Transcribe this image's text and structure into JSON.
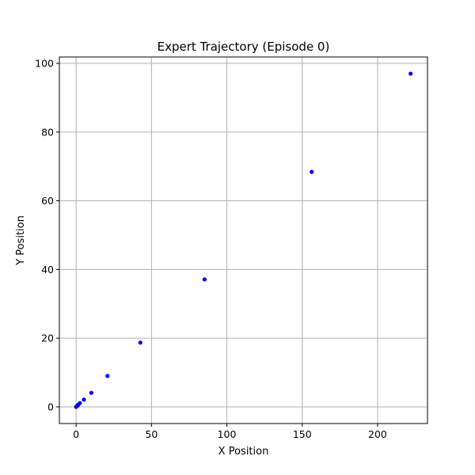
{
  "chart_data": {
    "type": "scatter",
    "title": "Expert Trajectory (Episode 0)",
    "xlabel": "X Position",
    "ylabel": "Y Position",
    "xlim": [
      -11.1,
      233.1
    ],
    "ylim": [
      -4.85,
      101.85
    ],
    "xticks": [
      0,
      50,
      100,
      150,
      200
    ],
    "yticks": [
      0,
      20,
      40,
      60,
      80,
      100
    ],
    "grid": true,
    "marker_color": "#0000ff",
    "x": [
      0,
      0.3,
      0.7,
      1.4,
      2.5,
      5.2,
      10.1,
      20.8,
      42.6,
      85.2,
      156.3,
      221.9
    ],
    "y": [
      0,
      0.1,
      0.3,
      0.6,
      1.1,
      2.1,
      4.1,
      9.0,
      18.7,
      37.1,
      68.4,
      97.0
    ]
  }
}
